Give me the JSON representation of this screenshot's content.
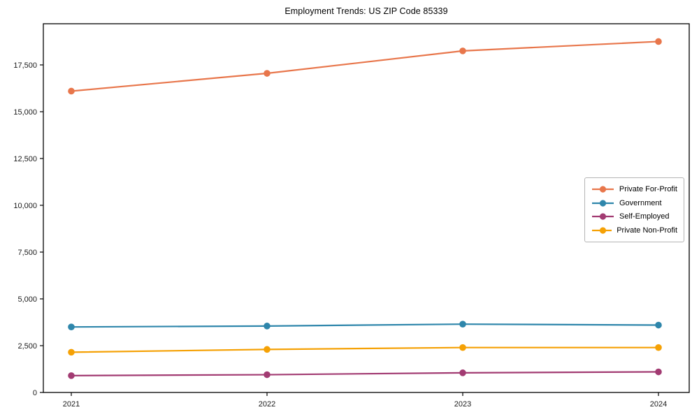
{
  "figure": {
    "background": "#ffffff",
    "text_color": "#1a1a1a",
    "spine_color": "#000000"
  },
  "chart_data": {
    "type": "line",
    "title": "Employment Trends: US ZIP Code 85339",
    "x": [
      "2021",
      "2022",
      "2023",
      "2024"
    ],
    "series": [
      {
        "name": "Private For-Profit",
        "color": "#E8764B",
        "values": [
          16100,
          17050,
          18250,
          18750
        ]
      },
      {
        "name": "Government",
        "color": "#2E86AB",
        "values": [
          3500,
          3550,
          3650,
          3600
        ]
      },
      {
        "name": "Self-Employed",
        "color": "#A23B72",
        "values": [
          900,
          950,
          1050,
          1100
        ]
      },
      {
        "name": "Private Non-Profit",
        "color": "#F5A105",
        "values": [
          2150,
          2300,
          2400,
          2400
        ]
      }
    ],
    "xlabel": "",
    "ylabel": "",
    "ylim": [
      0,
      19700
    ],
    "yticks": [
      0,
      2500,
      5000,
      7500,
      10000,
      12500,
      15000,
      17500
    ],
    "grid": false,
    "legend": {
      "position": "center-right",
      "border": true
    },
    "marker": "circle"
  }
}
